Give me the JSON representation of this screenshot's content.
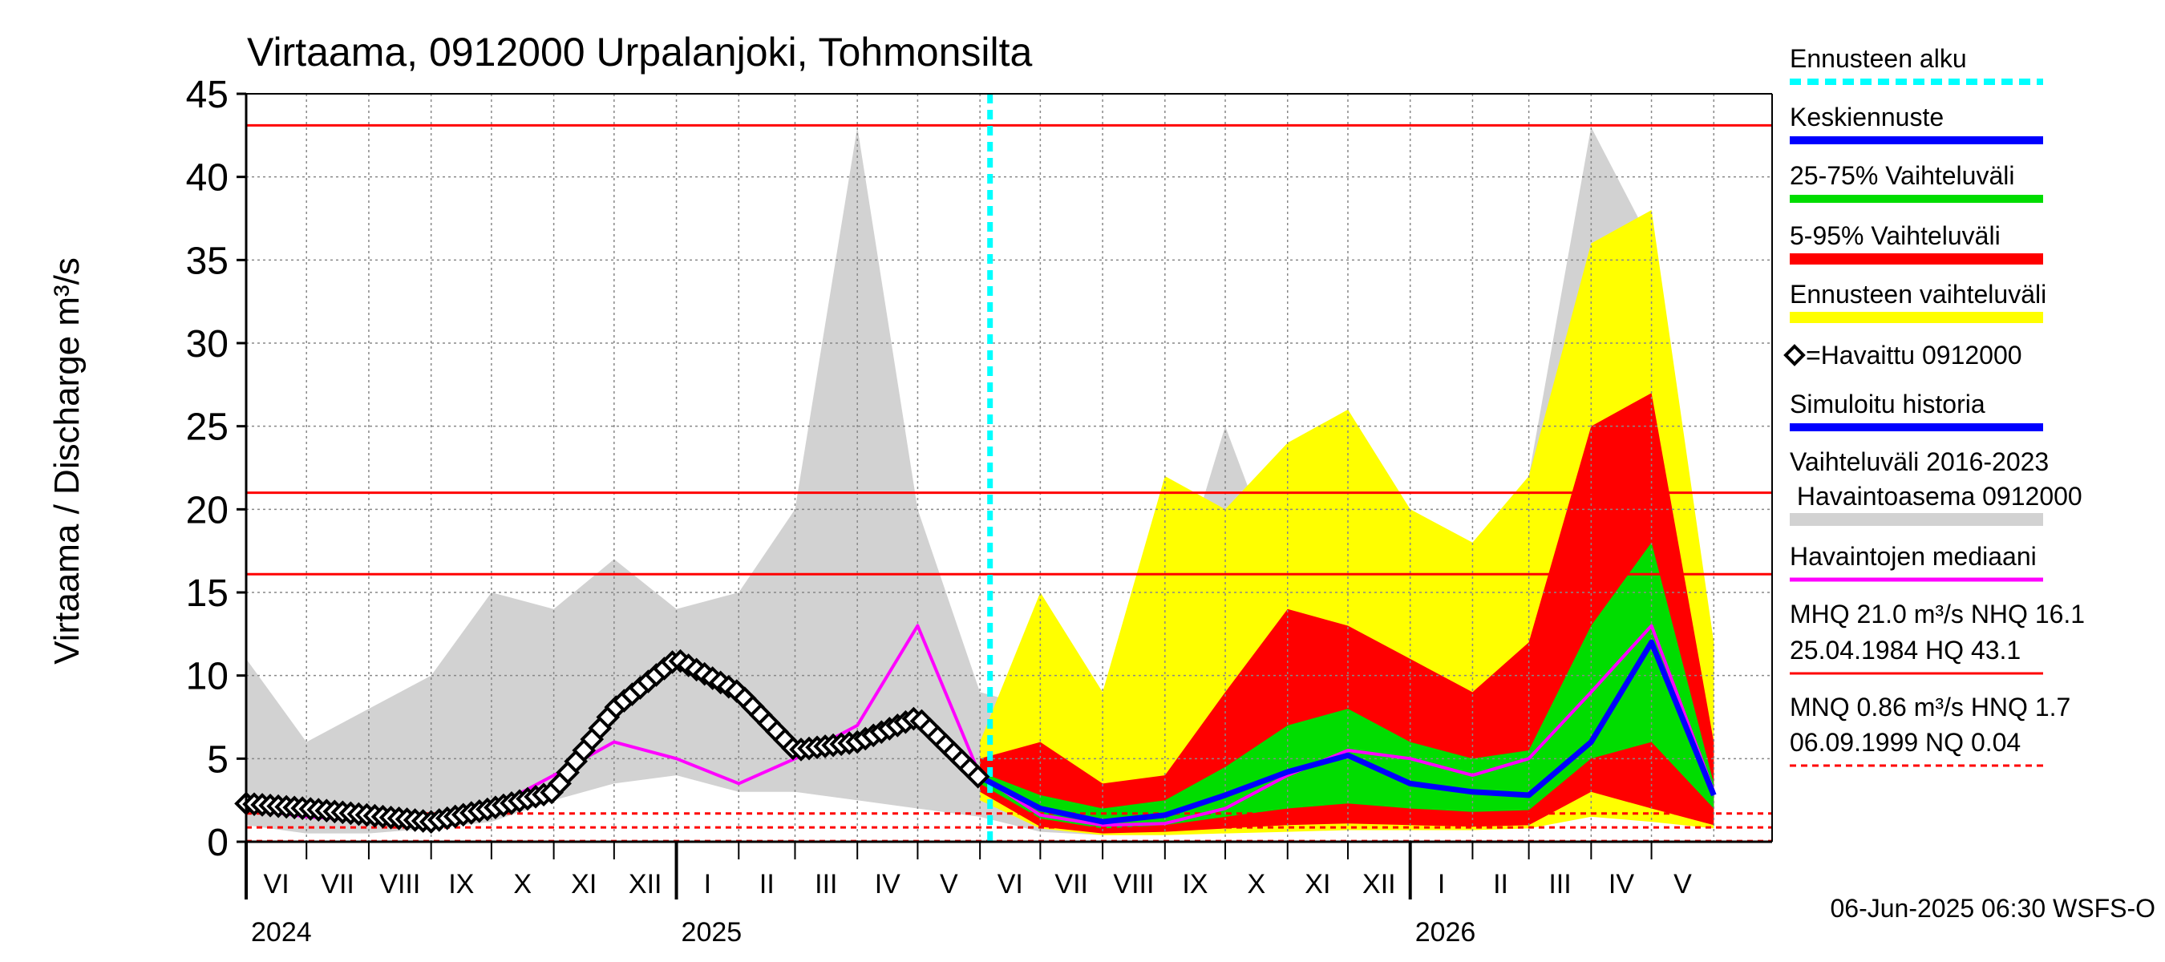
{
  "chart_data": {
    "type": "line",
    "title": "Virtaama, 0912000 Urpalanjoki, Tohmonsilta",
    "ylabel": "Virtaama / Discharge    m³/s",
    "ylim": [
      0,
      45
    ],
    "yticks": [
      0,
      5,
      10,
      15,
      20,
      25,
      30,
      35,
      40,
      45
    ],
    "xlim": [
      "2024-06-01",
      "2026-06-30"
    ],
    "grid": true,
    "legend_position": "right",
    "forecast_start": "2025-06-06",
    "months": [
      "VI",
      "VII",
      "VIII",
      "IX",
      "X",
      "XI",
      "XII",
      "I",
      "II",
      "III",
      "IV",
      "V",
      "VI",
      "VII",
      "VIII",
      "IX",
      "X",
      "XI",
      "XII",
      "I",
      "II",
      "III",
      "IV",
      "V"
    ],
    "years": [
      {
        "label": "2024",
        "date": "2024-06-01"
      },
      {
        "label": "2025",
        "date": "2025-01-01"
      },
      {
        "label": "2026",
        "date": "2026-01-01"
      }
    ],
    "reference_lines": [
      {
        "value": 43.1,
        "style": "solid"
      },
      {
        "value": 21.0,
        "style": "solid"
      },
      {
        "value": 16.1,
        "style": "solid"
      },
      {
        "value": 1.7,
        "style": "dashed"
      },
      {
        "value": 0.86,
        "style": "dashed"
      },
      {
        "value": 0.04,
        "style": "dashed"
      }
    ],
    "x": [
      "2024-06-01",
      "2024-07-01",
      "2024-08-01",
      "2024-09-01",
      "2024-10-01",
      "2024-11-01",
      "2024-12-01",
      "2025-01-01",
      "2025-02-01",
      "2025-03-01",
      "2025-04-01",
      "2025-05-01",
      "2025-06-01",
      "2025-07-01",
      "2025-08-01",
      "2025-09-01",
      "2025-10-01",
      "2025-11-01",
      "2025-12-01",
      "2026-01-01",
      "2026-02-01",
      "2026-03-01",
      "2026-04-01",
      "2026-05-01",
      "2026-06-01"
    ],
    "series": [
      {
        "name": "Vaihteluväli 2016-2023 Havaintoasema 0912000",
        "kind": "band",
        "color": "#d2d2d2",
        "upper": [
          11,
          6,
          8,
          10,
          15,
          14,
          17,
          14,
          15,
          20,
          43,
          20,
          9,
          8,
          6,
          13,
          25,
          15,
          18,
          16,
          13,
          22,
          43,
          36,
          12
        ],
        "lower": [
          1,
          0.5,
          0.5,
          0.8,
          1.2,
          2.5,
          3.5,
          4,
          3,
          3,
          2.5,
          2,
          1.5,
          0.6,
          0.4,
          0.6,
          1,
          1.5,
          1.8,
          1.6,
          1.5,
          1.4,
          2,
          1.5,
          1.2
        ]
      },
      {
        "name": "Ennusteen vaihteluväli",
        "kind": "band",
        "color": "#ffff00",
        "upper": [
          null,
          null,
          null,
          null,
          null,
          null,
          null,
          null,
          null,
          null,
          null,
          null,
          6,
          15,
          9,
          22,
          20,
          24,
          26,
          20,
          18,
          22,
          36,
          38,
          12
        ],
        "lower": [
          null,
          null,
          null,
          null,
          null,
          null,
          null,
          null,
          null,
          null,
          null,
          null,
          2.5,
          0.8,
          0.4,
          0.4,
          0.5,
          0.6,
          0.7,
          0.7,
          0.7,
          0.8,
          1.5,
          1.2,
          0.8
        ]
      },
      {
        "name": "5-95% Vaihteluväli",
        "kind": "band",
        "color": "#ff0000",
        "upper": [
          null,
          null,
          null,
          null,
          null,
          null,
          null,
          null,
          null,
          null,
          null,
          null,
          5,
          6,
          3.5,
          4,
          9,
          14,
          13,
          11,
          9,
          12,
          25,
          27,
          6
        ],
        "lower": [
          null,
          null,
          null,
          null,
          null,
          null,
          null,
          null,
          null,
          null,
          null,
          null,
          3,
          0.9,
          0.5,
          0.6,
          0.8,
          1,
          1.1,
          1,
          0.9,
          1,
          3,
          2,
          1
        ]
      },
      {
        "name": "25-75% Vaihteluväli",
        "kind": "band",
        "color": "#00dd00",
        "upper": [
          null,
          null,
          null,
          null,
          null,
          null,
          null,
          null,
          null,
          null,
          null,
          null,
          4.2,
          2.8,
          2,
          2.5,
          4.5,
          7,
          8,
          6,
          5,
          5.5,
          13,
          18,
          3.5
        ],
        "lower": [
          null,
          null,
          null,
          null,
          null,
          null,
          null,
          null,
          null,
          null,
          null,
          null,
          3.5,
          1.4,
          0.8,
          1,
          1.5,
          2,
          2.3,
          2,
          1.8,
          1.9,
          5,
          6,
          2
        ]
      },
      {
        "name": "Keskiennuste",
        "kind": "line",
        "color": "#0000ff",
        "values": [
          null,
          null,
          null,
          null,
          null,
          null,
          null,
          null,
          null,
          null,
          null,
          null,
          3.9,
          2,
          1.2,
          1.6,
          2.8,
          4.2,
          5.2,
          3.5,
          3,
          2.8,
          6,
          12,
          2.8
        ]
      },
      {
        "name": "Havaintojen mediaani",
        "kind": "line",
        "color": "#ff00ff",
        "values": [
          2,
          1.5,
          1.3,
          1.4,
          2,
          4,
          6,
          5,
          3.5,
          5,
          7,
          13,
          4,
          1.6,
          1,
          1.1,
          2,
          4,
          5.5,
          5,
          4,
          5,
          9,
          13,
          3
        ]
      },
      {
        "name": "Simuloitu historia",
        "kind": "line",
        "color": "#0000ff",
        "values": [
          2.3,
          2,
          1.6,
          1.2,
          2,
          3,
          7.5,
          11,
          9,
          5.5,
          6,
          7.5,
          3.6,
          null,
          null,
          null,
          null,
          null,
          null,
          null,
          null,
          null,
          null,
          null,
          null
        ]
      },
      {
        "name": "=Havaittu 0912000",
        "kind": "markers",
        "color": "#000000",
        "values": [
          2.3,
          2,
          1.6,
          1.2,
          2,
          3,
          8,
          11,
          9,
          5.5,
          6,
          7.5,
          3.8,
          null,
          null,
          null,
          null,
          null,
          null,
          null,
          null,
          null,
          null,
          null,
          null
        ]
      }
    ],
    "legend": [
      {
        "label": "Ennusteen alku",
        "sample": "cyan-dash"
      },
      {
        "label": "Keskiennuste",
        "sample": "blue"
      },
      {
        "label": "25-75% Vaihteluväli",
        "sample": "green"
      },
      {
        "label": "5-95% Vaihteluväli",
        "sample": "red"
      },
      {
        "label": "Ennusteen vaihteluväli",
        "sample": "yellow"
      },
      {
        "label": "=Havaittu 0912000",
        "sample": "diamond"
      },
      {
        "label": "Simuloitu historia",
        "sample": "blue"
      },
      {
        "label": "Vaihteluväli 2016-2023",
        "label2": " Havaintoasema 0912000",
        "sample": "gray"
      },
      {
        "label": "Havaintojen mediaani",
        "sample": "magenta"
      },
      {
        "label": "MHQ 21.0 m³/s NHQ 16.1",
        "label2": "25.04.1984 HQ 43.1",
        "sample": "red-line"
      },
      {
        "label": "MNQ 0.86 m³/s HNQ  1.7",
        "label2": "06.09.1999 NQ 0.04",
        "sample": "red-dash"
      }
    ],
    "colors": {
      "forecast_start": "#00ffff",
      "reference": "#ff0000",
      "grid": "#888888"
    }
  },
  "footer": {
    "timestamp": "06-Jun-2025 06:30 WSFS-O"
  }
}
